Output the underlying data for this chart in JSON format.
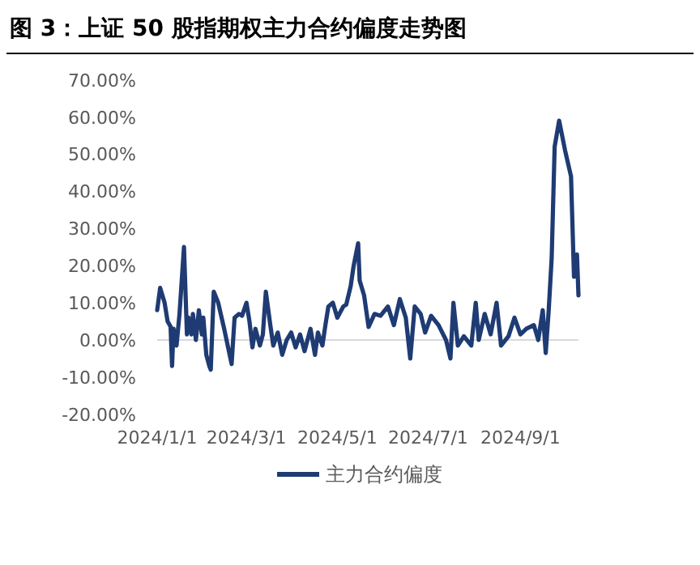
{
  "chart_data": {
    "type": "line",
    "title": "图 3：上证 50 股指期权主力合约偏度走势图",
    "legend": "bottom",
    "x": [
      "2024-01-01",
      "2024-01-03",
      "2024-01-06",
      "2024-01-08",
      "2024-01-10",
      "2024-01-11",
      "2024-01-12",
      "2024-01-14",
      "2024-01-16",
      "2024-01-19",
      "2024-01-21",
      "2024-01-22",
      "2024-01-24",
      "2024-01-25",
      "2024-01-27",
      "2024-01-29",
      "2024-01-31",
      "2024-02-01",
      "2024-02-03",
      "2024-02-05",
      "2024-02-06",
      "2024-02-08",
      "2024-02-11",
      "2024-02-15",
      "2024-02-20",
      "2024-02-22",
      "2024-02-25",
      "2024-02-27",
      "2024-03-01",
      "2024-03-03",
      "2024-03-05",
      "2024-03-07",
      "2024-03-10",
      "2024-03-12",
      "2024-03-14",
      "2024-03-17",
      "2024-03-19",
      "2024-03-22",
      "2024-03-25",
      "2024-03-28",
      "2024-03-31",
      "2024-04-03",
      "2024-04-06",
      "2024-04-09",
      "2024-04-13",
      "2024-04-16",
      "2024-04-18",
      "2024-04-21",
      "2024-04-23",
      "2024-04-25",
      "2024-04-28",
      "2024-05-01",
      "2024-05-05",
      "2024-05-07",
      "2024-05-10",
      "2024-05-12",
      "2024-05-15",
      "2024-05-16",
      "2024-05-19",
      "2024-05-22",
      "2024-05-26",
      "2024-05-30",
      "2024-06-04",
      "2024-06-08",
      "2024-06-12",
      "2024-06-16",
      "2024-06-19",
      "2024-06-22",
      "2024-06-26",
      "2024-06-29",
      "2024-07-03",
      "2024-07-08",
      "2024-07-13",
      "2024-07-16",
      "2024-07-18",
      "2024-07-21",
      "2024-07-25",
      "2024-07-30",
      "2024-08-02",
      "2024-08-04",
      "2024-08-08",
      "2024-08-12",
      "2024-08-16",
      "2024-08-19",
      "2024-08-24",
      "2024-08-28",
      "2024-09-01",
      "2024-09-05",
      "2024-09-10",
      "2024-09-13",
      "2024-09-16",
      "2024-09-18",
      "2024-09-20",
      "2024-09-22",
      "2024-09-24",
      "2024-09-27",
      "2024-10-01",
      "2024-10-05",
      "2024-10-07",
      "2024-10-09",
      "2024-10-10"
    ],
    "series": [
      {
        "name": "主力合约偏度",
        "color": "#1f3b73",
        "values": [
          8,
          14,
          10,
          5,
          3.6,
          -7,
          3,
          -1.5,
          7,
          25,
          1.5,
          6,
          1.5,
          7,
          0,
          8,
          1.5,
          6,
          -4,
          -7,
          -8,
          13,
          10,
          3,
          -6.5,
          6,
          7,
          6.5,
          10,
          5,
          -2,
          3,
          -1.5,
          1.5,
          13,
          4,
          -1.5,
          2,
          -4,
          0,
          2,
          -2,
          1.5,
          -3,
          3,
          -4,
          2,
          -1.5,
          4,
          9,
          10,
          6,
          9,
          9.5,
          14.5,
          20,
          26,
          16,
          12,
          3.5,
          7,
          6.5,
          9,
          4,
          11,
          6,
          -5,
          9,
          7,
          2,
          6.5,
          4,
          0,
          -5,
          10,
          -1.5,
          1,
          -1.5,
          10,
          0,
          7,
          1.5,
          10,
          -1.5,
          1,
          6,
          1.5,
          3,
          4,
          0,
          8,
          -3.5,
          8,
          22,
          52,
          59,
          51,
          44,
          17,
          23,
          12
        ]
      }
    ],
    "xlim": [
      "2024-01-01",
      "2024-10-10"
    ],
    "xticks": [
      {
        "value": "2024-01-01",
        "label": "2024/1/1"
      },
      {
        "value": "2024-03-01",
        "label": "2024/3/1"
      },
      {
        "value": "2024-05-01",
        "label": "2024/5/1"
      },
      {
        "value": "2024-07-01",
        "label": "2024/7/1"
      },
      {
        "value": "2024-09-01",
        "label": "2024/9/1"
      }
    ],
    "ylim": [
      -20,
      70
    ],
    "yticks": [
      {
        "value": -20,
        "label": "-20.00%"
      },
      {
        "value": -10,
        "label": "-10.00%"
      },
      {
        "value": 0,
        "label": "0.00%"
      },
      {
        "value": 10,
        "label": "10.00%"
      },
      {
        "value": 20,
        "label": "20.00%"
      },
      {
        "value": 30,
        "label": "30.00%"
      },
      {
        "value": 40,
        "label": "40.00%"
      },
      {
        "value": 50,
        "label": "50.00%"
      },
      {
        "value": 60,
        "label": "60.00%"
      },
      {
        "value": 70,
        "label": "70.00%"
      }
    ]
  }
}
